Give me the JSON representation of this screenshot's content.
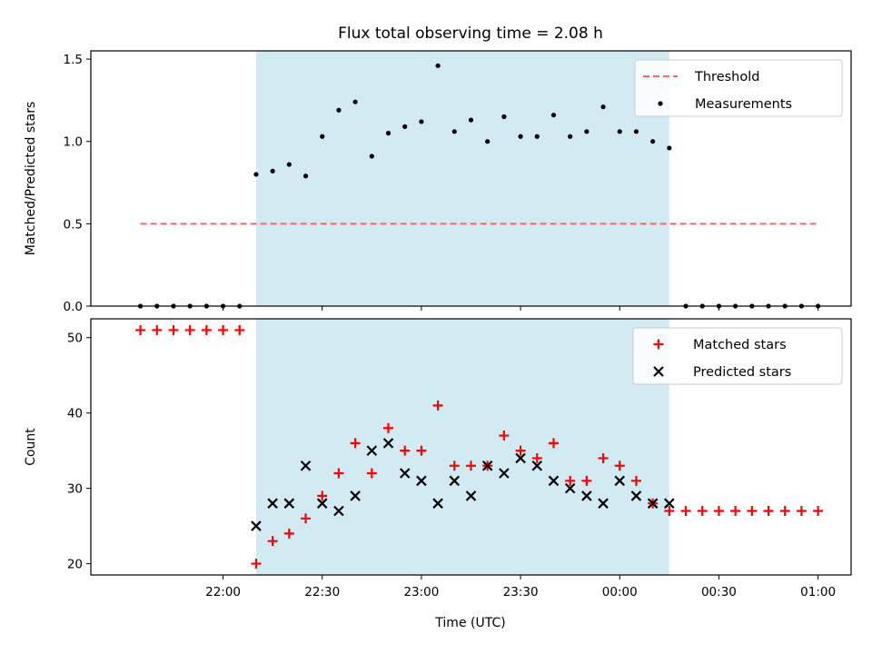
{
  "chart_data": {
    "type": "scatter",
    "title": "Flux total observing time = 2.08 h",
    "xlabel": "Time (UTC)",
    "x_tick_labels": [
      "22:00",
      "22:30",
      "23:00",
      "23:30",
      "00:00",
      "00:30",
      "01:00"
    ],
    "x_ticks": [
      "2021-01-01T22:00",
      "2021-01-01T22:30",
      "2021-01-01T23:00",
      "2021-01-01T23:30",
      "2021-01-02T00:00",
      "2021-01-02T00:30",
      "2021-01-02T01:00"
    ],
    "xlim": [
      "2021-01-01T21:20",
      "2021-01-02T01:10"
    ],
    "shaded_interval": [
      "2021-01-01T22:10",
      "2021-01-02T00:15"
    ],
    "colors": {
      "shade": "#add8e6",
      "threshold": "#ff6666",
      "matched": "#ff0000",
      "predicted": "#000000",
      "measurements": "#000000"
    },
    "panels": [
      {
        "ylabel": "Matched/Predicted stars",
        "ylim": [
          0,
          1.55
        ],
        "y_ticks": [
          0.0,
          0.5,
          1.0,
          1.5
        ],
        "y_tick_labels": [
          "0.0",
          "0.5",
          "1.0",
          "1.5"
        ],
        "legend_position": "top-right",
        "legend": [
          "Threshold",
          "Measurements"
        ],
        "series": [
          {
            "name": "Threshold",
            "style": "dashed-line",
            "x": [
              "2021-01-01T21:35",
              "2021-01-02T01:00"
            ],
            "values": [
              0.5,
              0.5
            ]
          },
          {
            "name": "Measurements",
            "style": "dot",
            "x": [
              "2021-01-01T21:35",
              "2021-01-01T21:40",
              "2021-01-01T21:45",
              "2021-01-01T21:50",
              "2021-01-01T21:55",
              "2021-01-01T22:00",
              "2021-01-01T22:05",
              "2021-01-01T22:10",
              "2021-01-01T22:15",
              "2021-01-01T22:20",
              "2021-01-01T22:25",
              "2021-01-01T22:30",
              "2021-01-01T22:35",
              "2021-01-01T22:40",
              "2021-01-01T22:45",
              "2021-01-01T22:50",
              "2021-01-01T22:55",
              "2021-01-01T23:00",
              "2021-01-01T23:05",
              "2021-01-01T23:10",
              "2021-01-01T23:15",
              "2021-01-01T23:20",
              "2021-01-01T23:25",
              "2021-01-01T23:30",
              "2021-01-01T23:35",
              "2021-01-01T23:40",
              "2021-01-01T23:45",
              "2021-01-01T23:50",
              "2021-01-01T23:55",
              "2021-01-02T00:00",
              "2021-01-02T00:05",
              "2021-01-02T00:10",
              "2021-01-02T00:15",
              "2021-01-02T00:20",
              "2021-01-02T00:25",
              "2021-01-02T00:30",
              "2021-01-02T00:35",
              "2021-01-02T00:40",
              "2021-01-02T00:45",
              "2021-01-02T00:50",
              "2021-01-02T00:55",
              "2021-01-02T01:00"
            ],
            "values": [
              0,
              0,
              0,
              0,
              0,
              0,
              0,
              0.8,
              0.82,
              0.86,
              0.79,
              1.03,
              1.19,
              1.24,
              0.91,
              1.05,
              1.09,
              1.12,
              1.46,
              1.06,
              1.13,
              1.0,
              1.15,
              1.03,
              1.03,
              1.16,
              1.03,
              1.06,
              1.21,
              1.06,
              1.06,
              1.0,
              0.96,
              0,
              0,
              0,
              0,
              0,
              0,
              0,
              0,
              0
            ]
          }
        ]
      },
      {
        "ylabel": "Count",
        "ylim": [
          18.5,
          52.5
        ],
        "y_ticks": [
          20,
          30,
          40,
          50
        ],
        "y_tick_labels": [
          "20",
          "30",
          "40",
          "50"
        ],
        "legend_position": "top-right",
        "legend": [
          "Matched stars",
          "Predicted stars"
        ],
        "series": [
          {
            "name": "Matched stars",
            "marker": "+",
            "x": [
              "2021-01-01T21:35",
              "2021-01-01T21:40",
              "2021-01-01T21:45",
              "2021-01-01T21:50",
              "2021-01-01T21:55",
              "2021-01-01T22:00",
              "2021-01-01T22:05",
              "2021-01-01T22:10",
              "2021-01-01T22:15",
              "2021-01-01T22:20",
              "2021-01-01T22:25",
              "2021-01-01T22:30",
              "2021-01-01T22:35",
              "2021-01-01T22:40",
              "2021-01-01T22:45",
              "2021-01-01T22:50",
              "2021-01-01T22:55",
              "2021-01-01T23:00",
              "2021-01-01T23:05",
              "2021-01-01T23:10",
              "2021-01-01T23:15",
              "2021-01-01T23:20",
              "2021-01-01T23:25",
              "2021-01-01T23:30",
              "2021-01-01T23:35",
              "2021-01-01T23:40",
              "2021-01-01T23:45",
              "2021-01-01T23:50",
              "2021-01-01T23:55",
              "2021-01-02T00:00",
              "2021-01-02T00:05",
              "2021-01-02T00:10",
              "2021-01-02T00:15",
              "2021-01-02T00:20",
              "2021-01-02T00:25",
              "2021-01-02T00:30",
              "2021-01-02T00:35",
              "2021-01-02T00:40",
              "2021-01-02T00:45",
              "2021-01-02T00:50",
              "2021-01-02T00:55",
              "2021-01-02T01:00"
            ],
            "values": [
              51,
              51,
              51,
              51,
              51,
              51,
              51,
              20,
              23,
              24,
              26,
              29,
              32,
              36,
              32,
              38,
              35,
              35,
              41,
              33,
              33,
              33,
              37,
              35,
              34,
              36,
              31,
              31,
              34,
              33,
              31,
              28,
              27,
              27,
              27,
              27,
              27,
              27,
              27,
              27,
              27,
              27
            ]
          },
          {
            "name": "Predicted stars",
            "marker": "x",
            "x": [
              "2021-01-01T22:10",
              "2021-01-01T22:15",
              "2021-01-01T22:20",
              "2021-01-01T22:25",
              "2021-01-01T22:30",
              "2021-01-01T22:35",
              "2021-01-01T22:40",
              "2021-01-01T22:45",
              "2021-01-01T22:50",
              "2021-01-01T22:55",
              "2021-01-01T23:00",
              "2021-01-01T23:05",
              "2021-01-01T23:10",
              "2021-01-01T23:15",
              "2021-01-01T23:20",
              "2021-01-01T23:25",
              "2021-01-01T23:30",
              "2021-01-01T23:35",
              "2021-01-01T23:40",
              "2021-01-01T23:45",
              "2021-01-01T23:50",
              "2021-01-01T23:55",
              "2021-01-02T00:00",
              "2021-01-02T00:05",
              "2021-01-02T00:10",
              "2021-01-02T00:15"
            ],
            "values": [
              25,
              28,
              28,
              33,
              28,
              27,
              29,
              35,
              36,
              32,
              31,
              28,
              31,
              29,
              33,
              32,
              34,
              33,
              31,
              30,
              29,
              28,
              31,
              29,
              28,
              28
            ]
          }
        ]
      }
    ]
  }
}
